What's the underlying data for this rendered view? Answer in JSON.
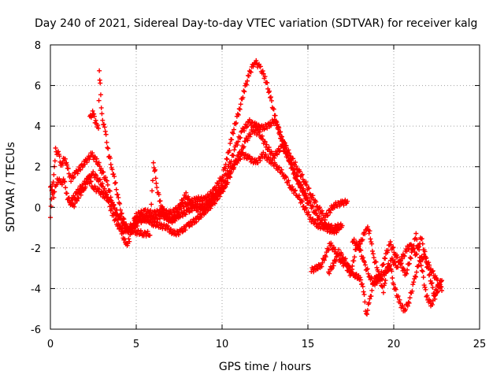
{
  "chart_data": {
    "type": "scatter",
    "title": "Day 240 of 2021, Sidereal Day-to-day VTEC variation (SDTVAR) for receiver kalg",
    "xlabel": "GPS time / hours",
    "ylabel": "SDTVAR / TECUs",
    "xlim": [
      0,
      25
    ],
    "ylim": [
      -6,
      8
    ],
    "xticks": [
      0,
      5,
      10,
      15,
      20,
      25
    ],
    "yticks": [
      -6,
      -4,
      -2,
      0,
      2,
      4,
      6,
      8
    ],
    "grid": true,
    "marker": "+",
    "color": "#ff0000",
    "series": [
      {
        "name": "trace-1",
        "points": [
          [
            0.0,
            -0.5
          ],
          [
            0.1,
            0.8
          ],
          [
            0.2,
            1.5
          ],
          [
            0.3,
            2.8
          ],
          [
            0.5,
            2.6
          ],
          [
            0.6,
            2.0
          ],
          [
            0.8,
            2.4
          ],
          [
            0.9,
            2.2
          ],
          [
            1.0,
            1.9
          ],
          [
            1.2,
            1.4
          ],
          [
            1.5,
            1.7
          ],
          [
            2.0,
            2.2
          ],
          [
            2.4,
            2.6
          ],
          [
            2.7,
            2.3
          ],
          [
            3.0,
            1.8
          ],
          [
            3.3,
            1.2
          ],
          [
            3.6,
            0.3
          ],
          [
            3.9,
            -0.6
          ],
          [
            4.2,
            -1.3
          ],
          [
            4.4,
            -1.9
          ],
          [
            4.6,
            -1.6
          ],
          [
            4.8,
            -0.8
          ],
          [
            5.0,
            -0.4
          ],
          [
            5.5,
            -0.2
          ],
          [
            6.0,
            -0.3
          ],
          [
            6.5,
            -0.2
          ],
          [
            7.0,
            -0.3
          ],
          [
            7.5,
            0.0
          ],
          [
            8.0,
            0.2
          ],
          [
            8.5,
            0.4
          ],
          [
            9.0,
            0.4
          ],
          [
            9.5,
            0.8
          ],
          [
            10.0,
            1.5
          ],
          [
            10.3,
            2.4
          ],
          [
            10.6,
            3.6
          ],
          [
            11.0,
            4.8
          ],
          [
            11.3,
            5.8
          ],
          [
            11.6,
            6.6
          ],
          [
            11.9,
            7.2
          ],
          [
            12.2,
            6.9
          ],
          [
            12.5,
            6.4
          ],
          [
            12.8,
            5.5
          ],
          [
            13.1,
            4.4
          ],
          [
            13.4,
            3.5
          ],
          [
            13.7,
            3.0
          ],
          [
            14.0,
            2.5
          ],
          [
            14.4,
            1.9
          ],
          [
            14.8,
            1.3
          ],
          [
            15.2,
            0.6
          ],
          [
            15.6,
            0.0
          ],
          [
            16.0,
            -0.5
          ],
          [
            16.5,
            0.1
          ],
          [
            17.0,
            0.2
          ],
          [
            17.3,
            0.3
          ]
        ]
      },
      {
        "name": "trace-2",
        "points": [
          [
            0.0,
            1.0
          ],
          [
            0.2,
            0.6
          ],
          [
            0.4,
            1.4
          ],
          [
            0.6,
            1.2
          ],
          [
            0.8,
            1.3
          ],
          [
            1.0,
            0.5
          ],
          [
            1.3,
            0.0
          ],
          [
            1.6,
            0.5
          ],
          [
            2.0,
            1.0
          ],
          [
            2.4,
            1.7
          ],
          [
            2.8,
            1.4
          ],
          [
            3.2,
            0.8
          ],
          [
            3.6,
            -0.3
          ],
          [
            4.0,
            -1.0
          ],
          [
            4.4,
            -1.2
          ],
          [
            4.8,
            -1.0
          ],
          [
            5.2,
            -0.7
          ],
          [
            5.6,
            -0.5
          ],
          [
            6.0,
            -0.6
          ],
          [
            6.5,
            -0.4
          ],
          [
            7.0,
            -0.6
          ],
          [
            7.5,
            -0.4
          ],
          [
            8.0,
            -0.2
          ],
          [
            8.5,
            0.1
          ],
          [
            9.0,
            0.0
          ],
          [
            9.5,
            0.5
          ],
          [
            10.0,
            1.1
          ],
          [
            10.4,
            2.0
          ],
          [
            10.8,
            3.0
          ],
          [
            11.2,
            3.8
          ],
          [
            11.6,
            4.2
          ],
          [
            12.0,
            4.0
          ],
          [
            12.4,
            3.9
          ],
          [
            12.8,
            4.1
          ],
          [
            13.1,
            4.3
          ],
          [
            13.4,
            3.6
          ],
          [
            13.8,
            2.6
          ],
          [
            14.2,
            1.6
          ],
          [
            14.6,
            1.0
          ],
          [
            15.0,
            0.4
          ],
          [
            15.5,
            -0.4
          ],
          [
            16.0,
            -0.9
          ],
          [
            16.5,
            -1.0
          ],
          [
            17.0,
            -0.9
          ]
        ]
      },
      {
        "name": "trace-3",
        "points": [
          [
            2.3,
            4.4
          ],
          [
            2.5,
            4.7
          ],
          [
            2.6,
            4.2
          ],
          [
            2.8,
            4.0
          ],
          [
            2.85,
            6.7
          ],
          [
            2.9,
            6.0
          ],
          [
            3.0,
            4.5
          ],
          [
            3.2,
            3.7
          ],
          [
            3.4,
            2.6
          ],
          [
            3.6,
            1.9
          ],
          [
            3.8,
            1.1
          ],
          [
            4.0,
            0.2
          ],
          [
            4.2,
            -0.5
          ],
          [
            4.5,
            -1.1
          ],
          [
            4.8,
            -0.8
          ],
          [
            5.2,
            -0.5
          ],
          [
            5.6,
            -0.6
          ],
          [
            6.0,
            -0.8
          ],
          [
            6.4,
            -0.9
          ],
          [
            6.8,
            -1.0
          ],
          [
            7.2,
            -1.3
          ],
          [
            7.6,
            -1.2
          ],
          [
            8.0,
            -0.9
          ],
          [
            8.5,
            -0.6
          ],
          [
            9.0,
            -0.2
          ],
          [
            9.5,
            0.2
          ],
          [
            10.0,
            0.8
          ],
          [
            10.4,
            1.6
          ],
          [
            10.8,
            2.2
          ],
          [
            11.2,
            2.6
          ],
          [
            11.6,
            2.4
          ],
          [
            12.0,
            2.2
          ],
          [
            12.4,
            2.6
          ],
          [
            12.8,
            2.3
          ],
          [
            13.2,
            2.0
          ],
          [
            13.6,
            1.6
          ],
          [
            14.0,
            1.0
          ],
          [
            14.4,
            0.6
          ],
          [
            14.8,
            0.0
          ],
          [
            15.2,
            -0.6
          ],
          [
            15.6,
            -0.9
          ],
          [
            16.0,
            -1.0
          ],
          [
            16.4,
            -1.2
          ],
          [
            16.8,
            -1.1
          ]
        ]
      },
      {
        "name": "trace-4",
        "points": [
          [
            1.1,
            0.2
          ],
          [
            1.3,
            0.4
          ],
          [
            1.6,
            0.8
          ],
          [
            1.9,
            1.1
          ],
          [
            2.2,
            1.4
          ],
          [
            2.5,
            1.0
          ],
          [
            2.8,
            0.8
          ],
          [
            3.1,
            0.6
          ],
          [
            3.4,
            0.4
          ],
          [
            3.7,
            0.0
          ],
          [
            4.0,
            -0.4
          ],
          [
            4.3,
            -0.9
          ],
          [
            4.6,
            -1.1
          ],
          [
            5.0,
            -1.2
          ],
          [
            5.4,
            -1.3
          ],
          [
            5.8,
            -1.3
          ],
          [
            6.0,
            2.1
          ],
          [
            6.1,
            1.8
          ],
          [
            6.2,
            1.0
          ],
          [
            6.4,
            0.2
          ],
          [
            6.7,
            -0.4
          ],
          [
            7.0,
            -0.7
          ],
          [
            7.4,
            -0.5
          ],
          [
            7.6,
            0.2
          ],
          [
            7.9,
            0.6
          ],
          [
            8.2,
            0.2
          ],
          [
            8.6,
            -0.1
          ],
          [
            9.0,
            0.1
          ],
          [
            9.4,
            0.4
          ],
          [
            9.8,
            0.7
          ],
          [
            10.2,
            1.0
          ],
          [
            10.6,
            1.9
          ],
          [
            11.0,
            2.6
          ],
          [
            11.4,
            3.3
          ],
          [
            11.8,
            3.8
          ],
          [
            12.2,
            3.6
          ],
          [
            12.6,
            3.0
          ],
          [
            13.0,
            2.5
          ],
          [
            13.5,
            3.0
          ],
          [
            14.0,
            2.2
          ],
          [
            14.5,
            1.2
          ],
          [
            15.0,
            0.2
          ]
        ]
      },
      {
        "name": "trace-5",
        "points": [
          [
            15.2,
            -3.1
          ],
          [
            15.5,
            -3.0
          ],
          [
            15.8,
            -2.8
          ],
          [
            16.0,
            -2.4
          ],
          [
            16.3,
            -1.8
          ],
          [
            16.6,
            -2.2
          ],
          [
            16.9,
            -2.6
          ],
          [
            17.2,
            -2.9
          ],
          [
            17.5,
            -3.3
          ],
          [
            17.8,
            -2.0
          ],
          [
            18.1,
            -1.7
          ],
          [
            18.4,
            -1.0
          ],
          [
            18.6,
            -1.2
          ],
          [
            18.8,
            -2.4
          ],
          [
            19.1,
            -3.1
          ],
          [
            19.4,
            -4.2
          ],
          [
            19.6,
            -3.0
          ],
          [
            19.9,
            -2.6
          ],
          [
            20.2,
            -2.9
          ],
          [
            20.5,
            -2.5
          ],
          [
            20.8,
            -2.0
          ],
          [
            21.0,
            -1.9
          ],
          [
            21.3,
            -2.3
          ],
          [
            21.6,
            -1.5
          ],
          [
            21.9,
            -2.6
          ],
          [
            22.2,
            -3.1
          ],
          [
            22.5,
            -3.6
          ],
          [
            22.7,
            -3.9
          ],
          [
            22.8,
            -4.1
          ]
        ]
      },
      {
        "name": "trace-6",
        "points": [
          [
            16.2,
            -3.2
          ],
          [
            16.5,
            -2.8
          ],
          [
            16.8,
            -2.2
          ],
          [
            17.1,
            -2.5
          ],
          [
            17.4,
            -3.0
          ],
          [
            17.7,
            -3.3
          ],
          [
            18.0,
            -3.5
          ],
          [
            18.2,
            -3.8
          ],
          [
            18.4,
            -5.3
          ],
          [
            18.6,
            -4.6
          ],
          [
            18.9,
            -3.4
          ],
          [
            19.2,
            -3.6
          ],
          [
            19.5,
            -3.2
          ],
          [
            19.8,
            -2.9
          ],
          [
            20.0,
            -3.8
          ],
          [
            20.3,
            -4.6
          ],
          [
            20.6,
            -5.1
          ],
          [
            20.9,
            -4.6
          ],
          [
            21.2,
            -3.6
          ],
          [
            21.5,
            -2.6
          ],
          [
            21.8,
            -2.4
          ],
          [
            22.1,
            -3.4
          ],
          [
            22.4,
            -4.4
          ],
          [
            22.7,
            -3.8
          ]
        ]
      },
      {
        "name": "trace-7",
        "points": [
          [
            17.6,
            -1.6
          ],
          [
            18.0,
            -2.0
          ],
          [
            18.3,
            -2.8
          ],
          [
            18.6,
            -3.4
          ],
          [
            18.9,
            -3.8
          ],
          [
            19.2,
            -3.4
          ],
          [
            19.5,
            -2.4
          ],
          [
            19.8,
            -1.8
          ],
          [
            20.1,
            -2.3
          ],
          [
            20.4,
            -2.8
          ],
          [
            20.7,
            -3.3
          ],
          [
            21.0,
            -2.4
          ],
          [
            21.3,
            -1.4
          ],
          [
            21.6,
            -2.8
          ],
          [
            21.9,
            -4.4
          ],
          [
            22.2,
            -4.8
          ],
          [
            22.5,
            -4.0
          ],
          [
            22.8,
            -3.6
          ]
        ]
      }
    ]
  }
}
